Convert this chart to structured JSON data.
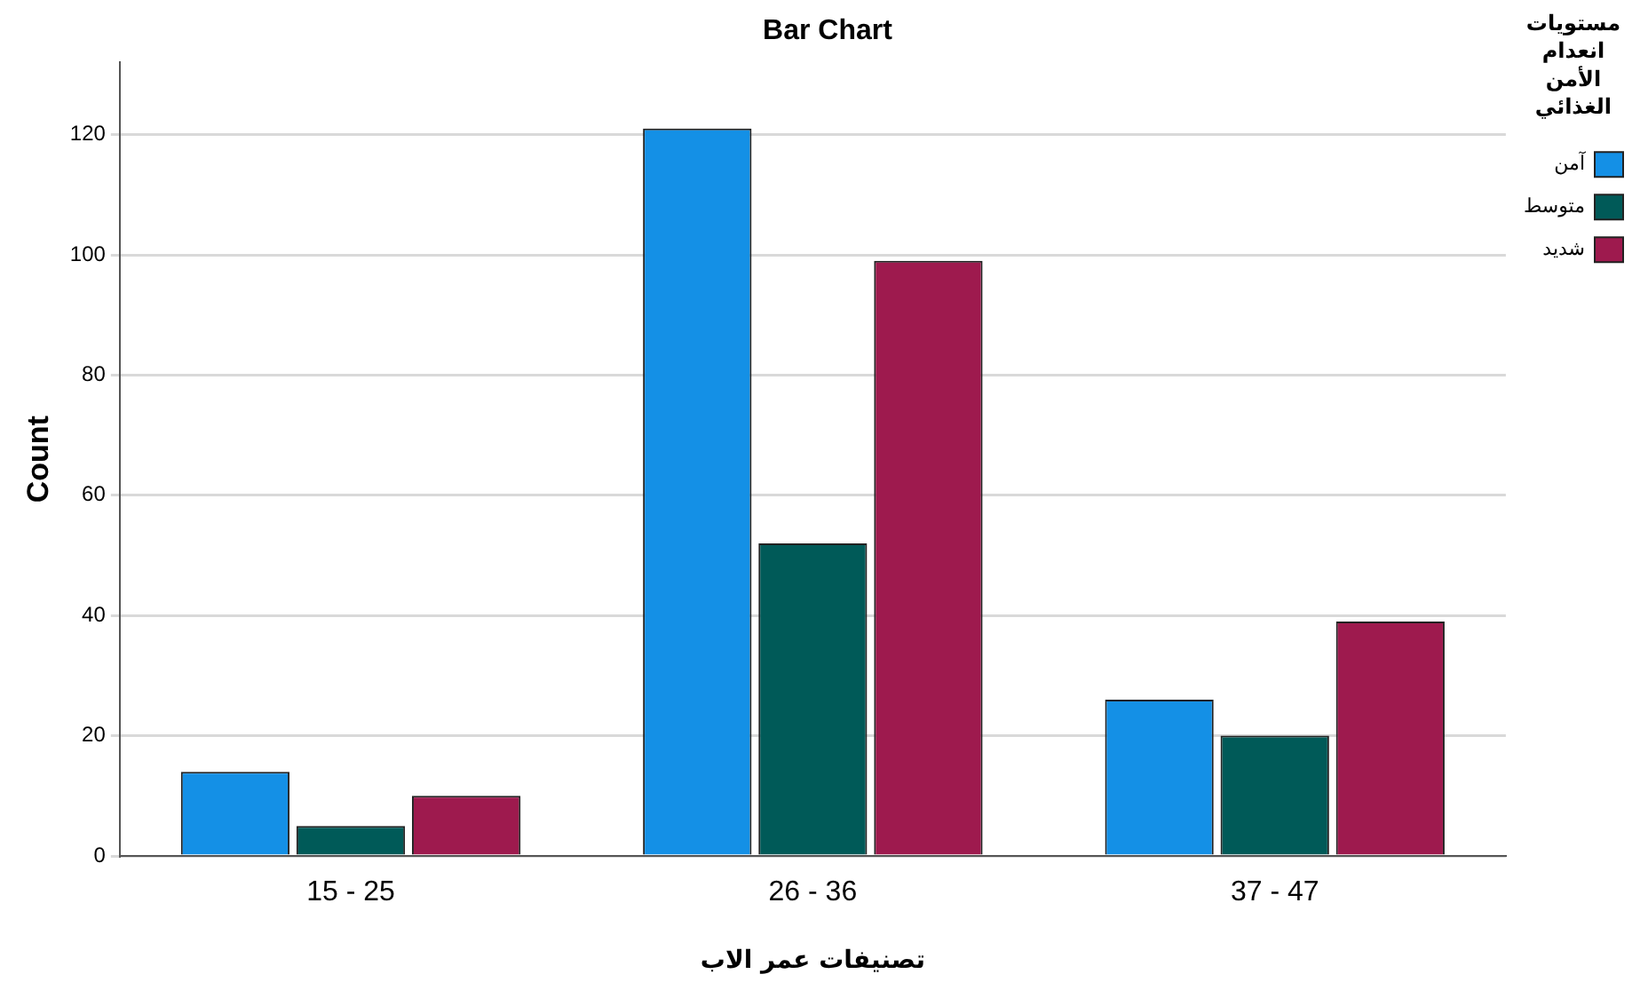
{
  "chart_data": {
    "type": "bar",
    "title": "Bar Chart",
    "xlabel": "تصنيفات عمر الاب",
    "ylabel": "Count",
    "legend_title": "مستويات انعدام الأمن الغذائي",
    "categories": [
      "15 - 25",
      "26 - 36",
      "37 - 47"
    ],
    "series": [
      {
        "name": "آمن",
        "color": "#1490e6",
        "values": [
          14,
          121,
          26
        ]
      },
      {
        "name": "متوسط",
        "color": "#005a58",
        "values": [
          5,
          52,
          20
        ]
      },
      {
        "name": "شديد",
        "color": "#9e1a4e",
        "values": [
          10,
          99,
          39
        ]
      }
    ],
    "ylim": [
      0,
      132
    ],
    "yticks": [
      0,
      20,
      40,
      60,
      80,
      100,
      120
    ],
    "grid": "y",
    "legend": "top right"
  }
}
